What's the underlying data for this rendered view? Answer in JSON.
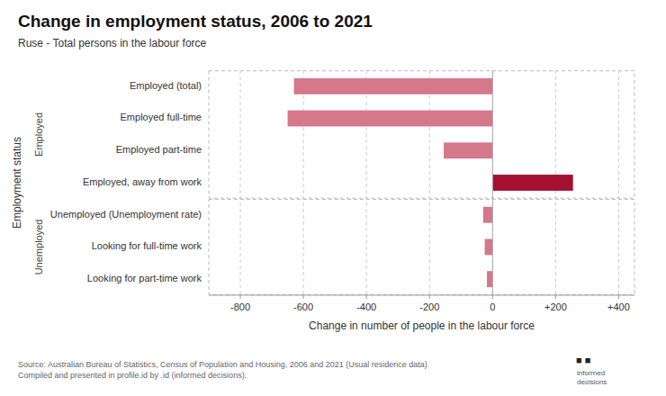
{
  "chart_data": {
    "type": "bar",
    "orientation": "horizontal",
    "title": "Change in employment status, 2006 to 2021",
    "subtitle": "Ruse - Total persons in the labour force",
    "xlabel": "Change in number of people in the labour force",
    "ylabel": "Employment status",
    "categories": [
      "Employed (total)",
      "Employed full-time",
      "Employed part-time",
      "Employed, away from work",
      "Unemployed (Unemployment rate)",
      "Looking for full-time work",
      "Looking for part-time work"
    ],
    "values": [
      -630,
      -650,
      -155,
      255,
      -30,
      -25,
      -18
    ],
    "colors": [
      "#d4788a",
      "#d4788a",
      "#d4788a",
      "#a31030",
      "#d4788a",
      "#d4788a",
      "#d4788a"
    ],
    "xlim": [
      -900,
      450
    ],
    "xticks": [
      -800,
      -600,
      -400,
      -200,
      0,
      {
        "value": 200,
        "label": "+200"
      },
      {
        "value": 400,
        "label": "+400"
      }
    ],
    "grid": true,
    "groups": [
      {
        "label": "Employed",
        "categories": [
          "Employed (total)",
          "Employed full-time",
          "Employed part-time",
          "Employed, away from work"
        ]
      },
      {
        "label": "Unemployed",
        "categories": [
          "Unemployed (Unemployment rate)",
          "Looking for full-time work",
          "Looking for part-time work"
        ]
      }
    ],
    "source": "Source: Australian Bureau of Statistics, Census of Population and Housing, 2006 and 2021 (Usual residence data)\nCompiled and presented in profile.id by .id (informed decisions).",
    "annotations": [
      "■ ■",
      "informed\ndecisions"
    ]
  }
}
